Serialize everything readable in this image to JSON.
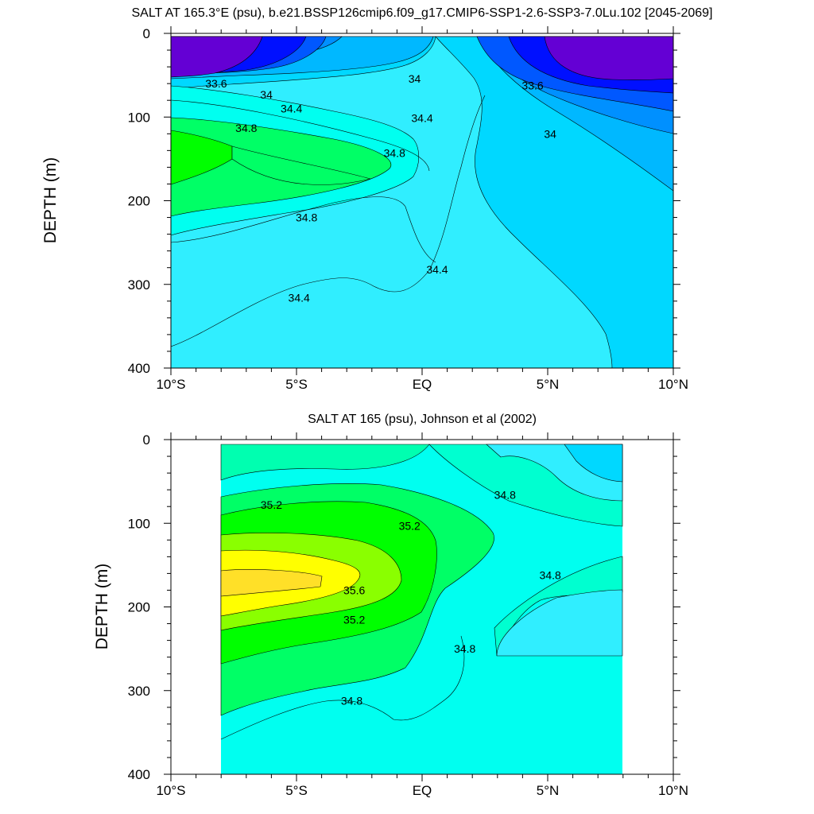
{
  "chart_data": [
    {
      "type": "heatmap",
      "subtype": "filled-contour",
      "title": "SALT AT 165.3°E (psu), b.e21.BSSP126cmip6.f09_g17.CMIP6-SSP1-2.6-SSP3-7.0Lu.102 [2045-2069]",
      "ylabel": "DEPTH (m)",
      "xlabel": "",
      "xlim": [
        -10,
        10
      ],
      "ylim": [
        400,
        0
      ],
      "y_reversed": true,
      "x_ticks": [
        {
          "value": -10,
          "label": "10°S"
        },
        {
          "value": -5,
          "label": "5°S"
        },
        {
          "value": 0,
          "label": "EQ"
        },
        {
          "value": 5,
          "label": "5°N"
        },
        {
          "value": 10,
          "label": "10°N"
        }
      ],
      "y_ticks": [
        {
          "value": 0,
          "label": "0"
        },
        {
          "value": 100,
          "label": "100"
        },
        {
          "value": 200,
          "label": "200"
        },
        {
          "value": 300,
          "label": "300"
        },
        {
          "value": 400,
          "label": "400"
        }
      ],
      "data_extent": {
        "lat": [
          -10,
          10
        ],
        "depth": [
          5,
          400
        ]
      },
      "contour_levels": [
        33.2,
        33.4,
        33.6,
        33.8,
        34.0,
        34.2,
        34.4,
        34.6,
        34.8,
        35.0
      ],
      "contour_labels": [
        {
          "lat": -8.2,
          "depth": 60,
          "text": "33.6"
        },
        {
          "lat": -6.2,
          "depth": 73,
          "text": "34"
        },
        {
          "lat": -5.2,
          "depth": 90,
          "text": "34.4"
        },
        {
          "lat": -7.0,
          "depth": 113,
          "text": "34.8"
        },
        {
          "lat": -4.6,
          "depth": 220,
          "text": "34.8"
        },
        {
          "lat": -4.9,
          "depth": 316,
          "text": "34.4"
        },
        {
          "lat": -1.1,
          "depth": 143,
          "text": "34.8"
        },
        {
          "lat": 0.0,
          "depth": 101,
          "text": "34.4"
        },
        {
          "lat": -0.3,
          "depth": 54,
          "text": "34"
        },
        {
          "lat": 4.4,
          "depth": 62,
          "text": "33.6"
        },
        {
          "lat": 5.1,
          "depth": 120,
          "text": "34"
        },
        {
          "lat": 0.6,
          "depth": 282,
          "text": "34.4"
        }
      ],
      "regions": [
        {
          "description": "minimum near 6-10S surface",
          "value": 33.2
        },
        {
          "description": "minimum near 5-10N surface",
          "value": 33.2
        },
        {
          "description": "salinity maximum near 10S, 170 m",
          "value": 35.0
        }
      ]
    },
    {
      "type": "heatmap",
      "subtype": "filled-contour",
      "title": "SALT AT 165 (psu), Johnson et al (2002)",
      "ylabel": "DEPTH (m)",
      "xlabel": "",
      "xlim": [
        -10,
        10
      ],
      "ylim": [
        400,
        0
      ],
      "y_reversed": true,
      "x_ticks": [
        {
          "value": -10,
          "label": "10°S"
        },
        {
          "value": -5,
          "label": "5°S"
        },
        {
          "value": 0,
          "label": "EQ"
        },
        {
          "value": 5,
          "label": "5°N"
        },
        {
          "value": 10,
          "label": "10°N"
        }
      ],
      "y_ticks": [
        {
          "value": 0,
          "label": "0"
        },
        {
          "value": 100,
          "label": "100"
        },
        {
          "value": 200,
          "label": "200"
        },
        {
          "value": 300,
          "label": "300"
        },
        {
          "value": 400,
          "label": "400"
        }
      ],
      "data_extent": {
        "lat": [
          -8,
          8
        ],
        "depth": [
          5,
          400
        ]
      },
      "contour_levels": [
        34.2,
        34.4,
        34.6,
        34.8,
        35.0,
        35.2,
        35.4,
        35.6,
        35.8
      ],
      "contour_labels": [
        {
          "lat": -6.0,
          "depth": 78,
          "text": "35.2"
        },
        {
          "lat": -0.5,
          "depth": 103,
          "text": "35.2"
        },
        {
          "lat": -2.7,
          "depth": 180,
          "text": "35.6"
        },
        {
          "lat": -2.7,
          "depth": 215,
          "text": "35.2"
        },
        {
          "lat": 3.3,
          "depth": 66,
          "text": "34.8"
        },
        {
          "lat": 5.1,
          "depth": 162,
          "text": "34.8"
        },
        {
          "lat": 1.7,
          "depth": 250,
          "text": "34.8"
        },
        {
          "lat": -2.8,
          "depth": 312,
          "text": "34.8"
        }
      ],
      "regions": [
        {
          "description": "salinity maximum near 6S, 170 m",
          "value": 35.8
        },
        {
          "description": "fresher water near 8N surface",
          "value": 34.2
        }
      ]
    }
  ],
  "colors": {
    "ncl_rainbow": [
      "#6400d4",
      "#0010ff",
      "#0058ff",
      "#0090ff",
      "#00b8ff",
      "#00d8ff",
      "#30eeff",
      "#00fff0",
      "#00ffb0",
      "#00ff66",
      "#00ff00",
      "#8aff00",
      "#ffff00",
      "#ffe028"
    ]
  }
}
